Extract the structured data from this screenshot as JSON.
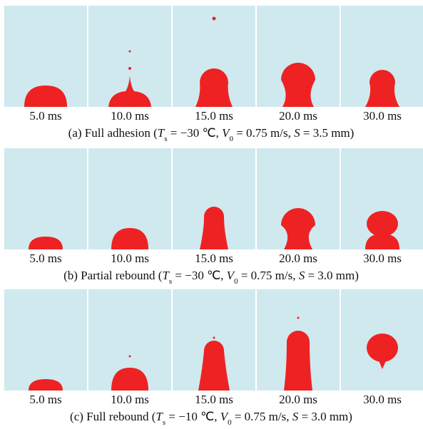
{
  "panels": [
    {
      "times": [
        "5.0 ms",
        "10.0 ms",
        "15.0 ms",
        "20.0 ms",
        "30.0 ms"
      ],
      "caption": [
        "(a) Full adhesion (",
        "T",
        "s",
        " = −30 ℃, ",
        "V",
        "0",
        " = 0.75 m/s, ",
        "S",
        " = 3.5 mm)"
      ]
    },
    {
      "times": [
        "5.0 ms",
        "10.0 ms",
        "15.0 ms",
        "20.0 ms",
        "30.0 ms"
      ],
      "caption": [
        "(b) Partial rebound (",
        "T",
        "s",
        " = −30 ℃, ",
        "V",
        "0",
        " = 0.75 m/s, ",
        "S",
        " = 3.0 mm)"
      ]
    },
    {
      "times": [
        "5.0 ms",
        "10.0 ms",
        "15.0 ms",
        "20.0 ms",
        "30.0 ms"
      ],
      "caption": [
        "(c) Full rebound (",
        "T",
        "s",
        " = −10 ℃, ",
        "V",
        "0",
        " = 0.75 m/s, ",
        "S",
        " = 3.0 mm)"
      ]
    }
  ]
}
